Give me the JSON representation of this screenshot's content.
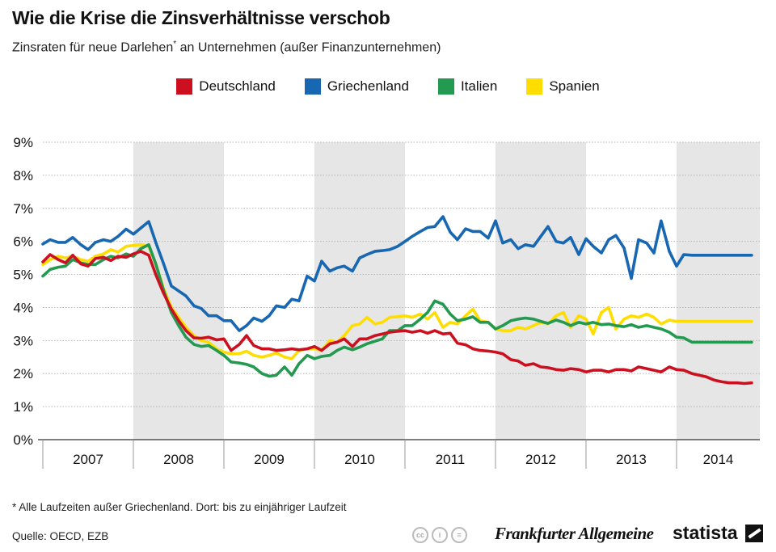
{
  "header": {
    "title": "Wie die Krise die Zinsverhältnisse verschob",
    "subtitle_pre": "Zinsraten für neue Darlehen",
    "subtitle_star": "*",
    "subtitle_post": " an Unternehmen (außer Finanzunternehmen)"
  },
  "footer": {
    "footnote": "* Alle Laufzeiten außer Griechenland. Dort: bis zu einjähriger Laufzeit",
    "source": "Quelle: OECD, EZB",
    "brand_faz": "Frankfurter Allgemeine",
    "brand_statista": "statista"
  },
  "colors": {
    "deutschland": "#cc1020",
    "griechenland": "#1767b2",
    "italien": "#239a4f",
    "spanien": "#ffdd00",
    "band": "#e6e6e6",
    "grid": "#b5b5b5"
  },
  "chart_data": {
    "type": "line",
    "title": "Wie die Krise die Zinsverhältnisse verschob",
    "xlabel": "",
    "ylabel": "",
    "ylim": [
      0,
      9
    ],
    "y_ticks": [
      "0%",
      "1%",
      "2%",
      "3%",
      "4%",
      "5%",
      "6%",
      "7%",
      "8%",
      "9%"
    ],
    "x_range": [
      2007.0,
      2014.92
    ],
    "x_tick_labels": [
      "2007",
      "2008",
      "2009",
      "2010",
      "2011",
      "2012",
      "2013",
      "2014"
    ],
    "shaded_years": [
      "2008",
      "2010",
      "2012",
      "2014"
    ],
    "legend_position": "top-center",
    "series": [
      {
        "name": "Deutschland",
        "color_key": "deutschland",
        "x": [
          2007.0,
          2007.08,
          2007.17,
          2007.25,
          2007.33,
          2007.42,
          2007.5,
          2007.58,
          2007.67,
          2007.75,
          2007.83,
          2007.92,
          2008.0,
          2008.08,
          2008.17,
          2008.25,
          2008.33,
          2008.42,
          2008.5,
          2008.58,
          2008.67,
          2008.75,
          2008.83,
          2008.92,
          2009.0,
          2009.08,
          2009.17,
          2009.25,
          2009.33,
          2009.42,
          2009.5,
          2009.58,
          2009.67,
          2009.75,
          2009.83,
          2009.92,
          2010.0,
          2010.08,
          2010.17,
          2010.25,
          2010.33,
          2010.42,
          2010.5,
          2010.58,
          2010.67,
          2010.75,
          2010.83,
          2010.92,
          2011.0,
          2011.08,
          2011.17,
          2011.25,
          2011.33,
          2011.42,
          2011.5,
          2011.58,
          2011.67,
          2011.75,
          2011.83,
          2011.92,
          2012.0,
          2012.08,
          2012.17,
          2012.25,
          2012.33,
          2012.42,
          2012.5,
          2012.58,
          2012.67,
          2012.75,
          2012.83,
          2012.92,
          2013.0,
          2013.08,
          2013.17,
          2013.25,
          2013.33,
          2013.42,
          2013.5,
          2013.58,
          2013.67,
          2013.75,
          2013.83,
          2013.92,
          2014.0,
          2014.08,
          2014.17,
          2014.25,
          2014.33,
          2014.42,
          2014.5,
          2014.58,
          2014.67,
          2014.75,
          2014.83
        ],
        "values": [
          5.38,
          5.6,
          5.45,
          5.35,
          5.58,
          5.32,
          5.25,
          5.48,
          5.52,
          5.42,
          5.55,
          5.52,
          5.62,
          5.7,
          5.58,
          4.98,
          4.45,
          3.95,
          3.6,
          3.3,
          3.08,
          3.07,
          3.1,
          3.02,
          3.05,
          2.7,
          2.88,
          3.15,
          2.85,
          2.75,
          2.75,
          2.7,
          2.72,
          2.75,
          2.72,
          2.75,
          2.82,
          2.7,
          2.9,
          2.95,
          3.05,
          2.82,
          3.05,
          3.05,
          3.15,
          3.2,
          3.25,
          3.28,
          3.3,
          3.25,
          3.3,
          3.22,
          3.3,
          3.2,
          3.22,
          2.92,
          2.87,
          2.75,
          2.7,
          2.68,
          2.65,
          2.6,
          2.42,
          2.38,
          2.25,
          2.3,
          2.2,
          2.18,
          2.12,
          2.1,
          2.15,
          2.12,
          2.05,
          2.1,
          2.1,
          2.05,
          2.12,
          2.12,
          2.08,
          2.2,
          2.15,
          2.1,
          2.05,
          2.2,
          2.12,
          2.1,
          2.0,
          1.95,
          1.9,
          1.8,
          1.75,
          1.72,
          1.72,
          1.7,
          1.72
        ]
      },
      {
        "name": "Griechenland",
        "color_key": "griechenland",
        "x": [
          2007.0,
          2007.08,
          2007.17,
          2007.25,
          2007.33,
          2007.42,
          2007.5,
          2007.58,
          2007.67,
          2007.75,
          2007.83,
          2007.92,
          2008.0,
          2008.08,
          2008.17,
          2008.25,
          2008.33,
          2008.42,
          2008.5,
          2008.58,
          2008.67,
          2008.75,
          2008.83,
          2008.92,
          2009.0,
          2009.08,
          2009.17,
          2009.25,
          2009.33,
          2009.42,
          2009.5,
          2009.58,
          2009.67,
          2009.75,
          2009.83,
          2009.92,
          2010.0,
          2010.08,
          2010.17,
          2010.25,
          2010.33,
          2010.42,
          2010.5,
          2010.58,
          2010.67,
          2010.75,
          2010.83,
          2010.92,
          2011.0,
          2011.08,
          2011.17,
          2011.25,
          2011.33,
          2011.42,
          2011.5,
          2011.58,
          2011.67,
          2011.75,
          2011.83,
          2011.92,
          2012.0,
          2012.08,
          2012.17,
          2012.25,
          2012.33,
          2012.42,
          2012.5,
          2012.58,
          2012.67,
          2012.75,
          2012.83,
          2012.92,
          2013.0,
          2013.08,
          2013.17,
          2013.25,
          2013.33,
          2013.42,
          2013.5,
          2013.58,
          2013.67,
          2013.75,
          2013.83,
          2013.92,
          2014.0,
          2014.08,
          2014.17,
          2014.25,
          2014.33,
          2014.42,
          2014.5,
          2014.58,
          2014.67,
          2014.75,
          2014.83
        ],
        "values": [
          5.92,
          6.05,
          5.97,
          5.97,
          6.12,
          5.9,
          5.75,
          5.97,
          6.05,
          6.0,
          6.15,
          6.37,
          6.22,
          6.4,
          6.6,
          5.95,
          5.35,
          4.65,
          4.5,
          4.35,
          4.05,
          3.97,
          3.75,
          3.75,
          3.6,
          3.6,
          3.3,
          3.45,
          3.68,
          3.58,
          3.75,
          4.05,
          4.0,
          4.25,
          4.2,
          4.95,
          4.8,
          5.4,
          5.1,
          5.2,
          5.25,
          5.1,
          5.5,
          5.6,
          5.7,
          5.72,
          5.75,
          5.85,
          6.0,
          6.15,
          6.3,
          6.42,
          6.45,
          6.75,
          6.28,
          6.05,
          6.38,
          6.3,
          6.3,
          6.1,
          6.62,
          5.95,
          6.05,
          5.78,
          5.9,
          5.85,
          6.15,
          6.45,
          6.0,
          5.95,
          6.12,
          5.6,
          6.08,
          5.85,
          5.65,
          6.05,
          6.18,
          5.8,
          4.88,
          6.05,
          5.95,
          5.65,
          6.62,
          5.7,
          5.25,
          5.6,
          5.58,
          5.58,
          5.58,
          5.58,
          5.58,
          5.58,
          5.58,
          5.58,
          5.58
        ]
      },
      {
        "name": "Italien",
        "color_key": "italien",
        "x": [
          2007.0,
          2007.08,
          2007.17,
          2007.25,
          2007.33,
          2007.42,
          2007.5,
          2007.58,
          2007.67,
          2007.75,
          2007.83,
          2007.92,
          2008.0,
          2008.08,
          2008.17,
          2008.25,
          2008.33,
          2008.42,
          2008.5,
          2008.58,
          2008.67,
          2008.75,
          2008.83,
          2008.92,
          2009.0,
          2009.08,
          2009.17,
          2009.25,
          2009.33,
          2009.42,
          2009.5,
          2009.58,
          2009.67,
          2009.75,
          2009.83,
          2009.92,
          2010.0,
          2010.08,
          2010.17,
          2010.25,
          2010.33,
          2010.42,
          2010.5,
          2010.58,
          2010.67,
          2010.75,
          2010.83,
          2010.92,
          2011.0,
          2011.08,
          2011.17,
          2011.25,
          2011.33,
          2011.42,
          2011.5,
          2011.58,
          2011.67,
          2011.75,
          2011.83,
          2011.92,
          2012.0,
          2012.08,
          2012.17,
          2012.25,
          2012.33,
          2012.42,
          2012.5,
          2012.58,
          2012.67,
          2012.75,
          2012.83,
          2012.92,
          2013.0,
          2013.08,
          2013.17,
          2013.25,
          2013.33,
          2013.42,
          2013.5,
          2013.58,
          2013.67,
          2013.75,
          2013.83,
          2013.92,
          2014.0,
          2014.08,
          2014.17,
          2014.25,
          2014.33,
          2014.42,
          2014.5,
          2014.58,
          2014.67,
          2014.75,
          2014.83
        ],
        "values": [
          4.95,
          5.15,
          5.22,
          5.25,
          5.45,
          5.35,
          5.3,
          5.3,
          5.45,
          5.55,
          5.5,
          5.62,
          5.55,
          5.78,
          5.9,
          5.3,
          4.55,
          3.85,
          3.45,
          3.1,
          2.88,
          2.82,
          2.85,
          2.7,
          2.55,
          2.35,
          2.32,
          2.28,
          2.2,
          2.0,
          1.92,
          1.95,
          2.2,
          1.95,
          2.3,
          2.55,
          2.45,
          2.52,
          2.55,
          2.7,
          2.8,
          2.72,
          2.8,
          2.9,
          2.98,
          3.05,
          3.3,
          3.3,
          3.45,
          3.45,
          3.65,
          3.85,
          4.2,
          4.1,
          3.8,
          3.6,
          3.65,
          3.72,
          3.55,
          3.55,
          3.35,
          3.45,
          3.6,
          3.65,
          3.68,
          3.65,
          3.58,
          3.52,
          3.62,
          3.55,
          3.45,
          3.55,
          3.5,
          3.55,
          3.48,
          3.5,
          3.45,
          3.42,
          3.48,
          3.4,
          3.45,
          3.4,
          3.35,
          3.25,
          3.1,
          3.08,
          2.95,
          2.95,
          2.95,
          2.95,
          2.95,
          2.95,
          2.95,
          2.95,
          2.95
        ]
      },
      {
        "name": "Spanien",
        "color_key": "spanien",
        "x": [
          2007.0,
          2007.08,
          2007.17,
          2007.25,
          2007.33,
          2007.42,
          2007.5,
          2007.58,
          2007.67,
          2007.75,
          2007.83,
          2007.92,
          2008.0,
          2008.08,
          2008.17,
          2008.25,
          2008.33,
          2008.42,
          2008.5,
          2008.58,
          2008.67,
          2008.75,
          2008.83,
          2008.92,
          2009.0,
          2009.08,
          2009.17,
          2009.25,
          2009.33,
          2009.42,
          2009.5,
          2009.58,
          2009.67,
          2009.75,
          2009.83,
          2009.92,
          2010.0,
          2010.08,
          2010.17,
          2010.25,
          2010.33,
          2010.42,
          2010.5,
          2010.58,
          2010.67,
          2010.75,
          2010.83,
          2010.92,
          2011.0,
          2011.08,
          2011.17,
          2011.25,
          2011.33,
          2011.42,
          2011.5,
          2011.58,
          2011.67,
          2011.75,
          2011.83,
          2011.92,
          2012.0,
          2012.08,
          2012.17,
          2012.25,
          2012.33,
          2012.42,
          2012.5,
          2012.58,
          2012.67,
          2012.75,
          2012.83,
          2012.92,
          2013.0,
          2013.08,
          2013.17,
          2013.25,
          2013.33,
          2013.42,
          2013.5,
          2013.58,
          2013.67,
          2013.75,
          2013.83,
          2013.92,
          2014.0,
          2014.08,
          2014.17,
          2014.25,
          2014.33,
          2014.42,
          2014.5,
          2014.58,
          2014.67,
          2014.75,
          2014.83
        ],
        "values": [
          5.3,
          5.45,
          5.55,
          5.5,
          5.55,
          5.45,
          5.4,
          5.55,
          5.62,
          5.75,
          5.68,
          5.85,
          5.88,
          5.9,
          5.85,
          5.3,
          4.6,
          4.0,
          3.7,
          3.4,
          3.15,
          3.0,
          2.95,
          2.75,
          2.65,
          2.6,
          2.6,
          2.68,
          2.55,
          2.5,
          2.55,
          2.62,
          2.5,
          2.45,
          2.7,
          2.75,
          2.75,
          2.7,
          3.0,
          2.95,
          3.15,
          3.45,
          3.5,
          3.7,
          3.5,
          3.55,
          3.7,
          3.72,
          3.75,
          3.7,
          3.8,
          3.65,
          3.85,
          3.4,
          3.55,
          3.5,
          3.75,
          3.95,
          3.6,
          3.55,
          3.35,
          3.3,
          3.3,
          3.4,
          3.35,
          3.45,
          3.55,
          3.5,
          3.75,
          3.85,
          3.4,
          3.75,
          3.65,
          3.2,
          3.85,
          4.0,
          3.35,
          3.65,
          3.75,
          3.7,
          3.8,
          3.7,
          3.5,
          3.62,
          3.58,
          3.58,
          3.58,
          3.58,
          3.58,
          3.58,
          3.58,
          3.58,
          3.58,
          3.58,
          3.58
        ]
      }
    ]
  }
}
